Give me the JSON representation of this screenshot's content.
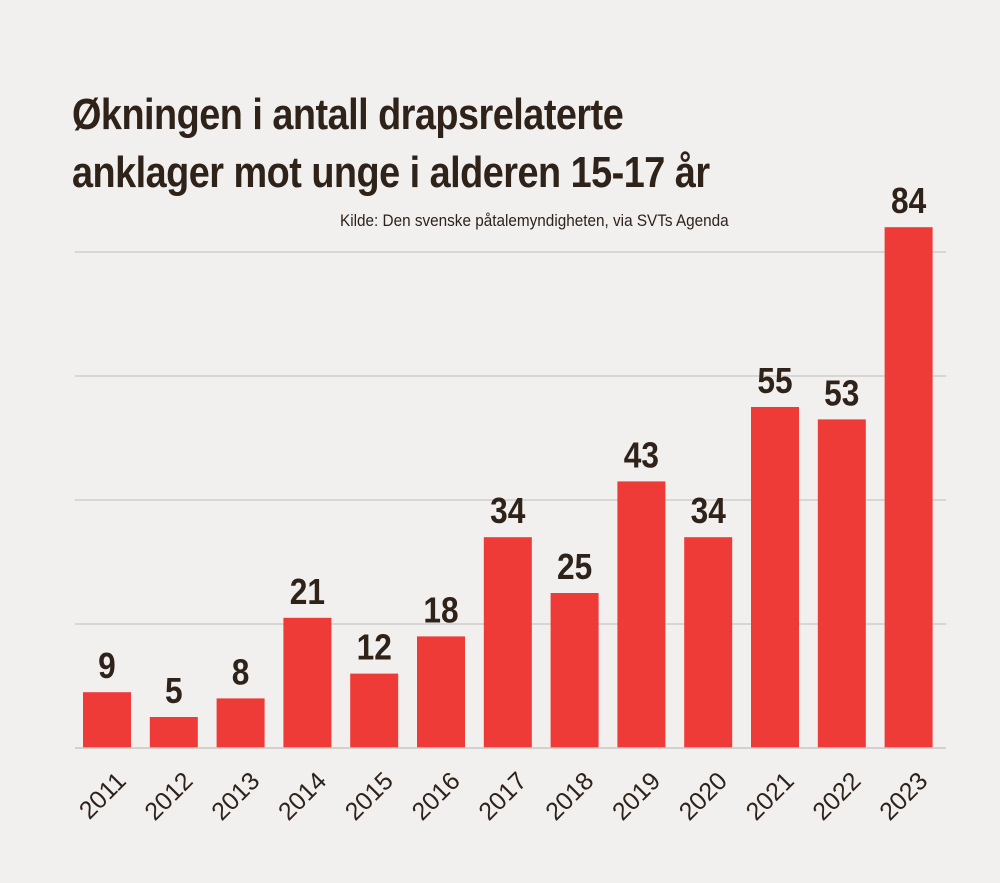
{
  "chart_data": {
    "type": "bar",
    "title": "Økningen i antall drapsrelaterte anklager mot unge i alderen 15-17 år",
    "subtitle": "Kilde: Den svenske påtalemyndigheten, via SVTs Agenda",
    "categories": [
      "2011",
      "2012",
      "2013",
      "2014",
      "2015",
      "2016",
      "2017",
      "2018",
      "2019",
      "2020",
      "2021",
      "2022",
      "2023"
    ],
    "values": [
      9,
      5,
      8,
      21,
      12,
      18,
      34,
      25,
      43,
      34,
      55,
      53,
      84
    ],
    "xlabel": "",
    "ylabel": "",
    "ylim": [
      0,
      80
    ],
    "grid": true,
    "bar_color": "#ee3b38",
    "text_color": "#2e2219",
    "background": "#f1f0ef"
  }
}
